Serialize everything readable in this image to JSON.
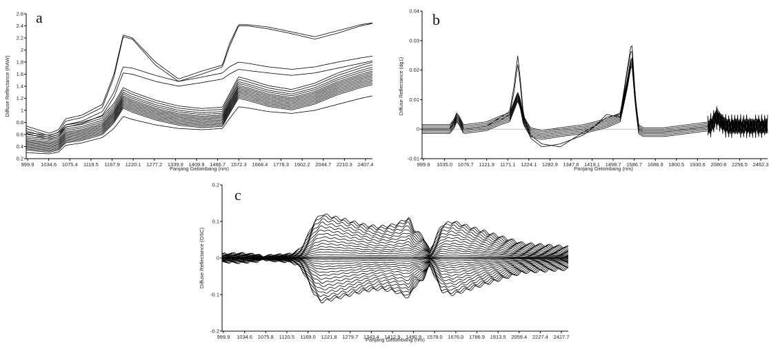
{
  "chart_data": [
    {
      "id": "a",
      "type": "line",
      "panel_label": "a",
      "xlabel": "Panjang Gelombang (nm)",
      "ylabel": "Diffuse Reflectance (RAW)",
      "x_range": [
        999.9,
        2500
      ],
      "ylim": [
        0.2,
        2.6
      ],
      "y_ticks": [
        "0.2",
        "0.4",
        "0.6",
        "0.8",
        "1",
        "1.2",
        "1.4",
        "1.6",
        "1.8",
        "2",
        "2.2",
        "2.4",
        "2.6"
      ],
      "x_ticks": [
        "999.9",
        "1034.6",
        "1075.4",
        "1119.5",
        "1167.9",
        "1220.1",
        "1277.2",
        "1339.9",
        "1409.9",
        "1486.7",
        "1572.3",
        "1668.4",
        "1778.3",
        "1902.2",
        "2044.7",
        "2210.3",
        "2407.4"
      ],
      "base_profile": {
        "x": [
          999.9,
          1100,
          1140,
          1170,
          1240,
          1330,
          1380,
          1420,
          1460,
          1560,
          1660,
          1760,
          1850,
          1880,
          1920,
          1960,
          2050,
          2150,
          2250,
          2350,
          2450,
          2500
        ],
        "y": [
          0.44,
          0.4,
          0.44,
          0.56,
          0.6,
          0.7,
          0.9,
          1.15,
          1.08,
          0.95,
          0.86,
          0.82,
          0.84,
          1.05,
          1.32,
          1.28,
          1.18,
          1.12,
          1.22,
          1.38,
          1.5,
          1.55
        ]
      },
      "series": [
        {
          "y": [
            0.74,
            0.62,
            0.68,
            0.86,
            0.92,
            1.1,
            1.6,
            2.25,
            2.2,
            1.8,
            1.52,
            1.65,
            1.75,
            2.1,
            2.42,
            2.42,
            2.38,
            2.3,
            2.22,
            2.32,
            2.42,
            2.45
          ]
        },
        {
          "y": [
            0.7,
            0.58,
            0.64,
            0.82,
            0.88,
            1.05,
            1.55,
            2.22,
            2.18,
            1.75,
            1.48,
            1.6,
            1.72,
            2.05,
            2.4,
            2.4,
            2.35,
            2.27,
            2.18,
            2.28,
            2.4,
            2.44
          ]
        },
        {
          "y": [
            0.66,
            0.55,
            0.6,
            0.76,
            0.82,
            0.98,
            1.3,
            1.72,
            1.7,
            1.58,
            1.48,
            1.55,
            1.62,
            1.72,
            1.8,
            1.78,
            1.72,
            1.68,
            1.72,
            1.8,
            1.87,
            1.9
          ]
        },
        {
          "y": [
            0.62,
            0.52,
            0.57,
            0.72,
            0.78,
            0.92,
            1.22,
            1.62,
            1.6,
            1.48,
            1.4,
            1.46,
            1.52,
            1.6,
            1.68,
            1.66,
            1.62,
            1.58,
            1.62,
            1.7,
            1.78,
            1.82
          ]
        },
        {
          "y": [
            0.3,
            0.28,
            0.31,
            0.42,
            0.46,
            0.55,
            0.7,
            0.9,
            0.85,
            0.76,
            0.7,
            0.68,
            0.7,
            0.86,
            1.06,
            1.04,
            0.98,
            0.95,
            1.0,
            1.1,
            1.2,
            1.24
          ]
        }
      ],
      "band_offsets": [
        -0.15,
        -0.12,
        -0.09,
        -0.06,
        -0.03,
        0,
        0.03,
        0.06,
        0.09,
        0.12,
        0.16,
        0.2,
        0.25,
        0.3
      ]
    },
    {
      "id": "b",
      "type": "line",
      "panel_label": "b",
      "xlabel": "Panjang Gelombang (nm)",
      "ylabel": "Diffuse Reflectance (dg1)",
      "x_range": [
        999.9,
        2500
      ],
      "ylim": [
        -0.01,
        0.04
      ],
      "y_ticks": [
        "-0.01",
        "0",
        "0.01",
        "0.02",
        "0.03",
        "0.04"
      ],
      "x_ticks": [
        "999.9",
        "1035.0",
        "1076.7",
        "1121.9",
        "1171.1",
        "1224.1",
        "1282.9",
        "1347.6",
        "1419.1",
        "1498.7",
        "1586.7",
        "1686.9",
        "1800.5",
        "1930.6",
        "2080.8",
        "2256.5",
        "2462.3"
      ],
      "base_profile": {
        "x": [
          999.9,
          1120,
          1140,
          1150,
          1160,
          1180,
          1280,
          1340,
          1380,
          1400,
          1415,
          1425,
          1440,
          1470,
          1520,
          1600,
          1700,
          1750,
          1800,
          1860,
          1890,
          1910,
          1925,
          1940,
          1960,
          2050,
          2150,
          2250,
          2280,
          2320,
          2400,
          2500
        ],
        "y": [
          0,
          0,
          0.002,
          0.004,
          0.003,
          0,
          0.001,
          0.003,
          0.004,
          0.008,
          0.011,
          0.009,
          0.003,
          -0.001,
          -0.002,
          -0.001,
          0,
          0.001,
          0.002,
          0.004,
          0.015,
          0.024,
          0.01,
          0,
          -0.001,
          -0.001,
          0,
          0.001,
          0.004,
          0.001,
          0.001,
          0.001
        ]
      },
      "series": [
        {
          "y": [
            0,
            0,
            0.003,
            0.005,
            0.004,
            0,
            0.001,
            0.004,
            0.006,
            0.015,
            0.025,
            0.018,
            0.005,
            -0.002,
            -0.005,
            -0.006,
            -0.001,
            0.001,
            0.004,
            0.005,
            0.02,
            0.03,
            0.012,
            0,
            -0.001,
            -0.001,
            0,
            0.001,
            0.007,
            0.002,
            0.002,
            0.001
          ]
        },
        {
          "y": [
            0,
            0,
            0.002,
            0.004,
            0.003,
            0,
            0.001,
            0.003,
            0.005,
            0.013,
            0.022,
            0.016,
            0.004,
            -0.003,
            -0.006,
            -0.005,
            -0.002,
            0.001,
            0.005,
            0.004,
            0.019,
            0.028,
            0.011,
            0,
            -0.001,
            -0.001,
            0,
            0.001,
            0.006,
            0.001,
            0.002,
            0.001
          ]
        }
      ],
      "band_offsets": [
        -0.0015,
        -0.001,
        -0.0005,
        0,
        0.0005,
        0.001,
        0.0015
      ]
    },
    {
      "id": "c",
      "type": "line",
      "panel_label": "c",
      "xlabel": "Panjang Gelombang (nm)",
      "ylabel": "Diffuse Reflectance (OSC)",
      "x_range": [
        999.9,
        2500
      ],
      "ylim": [
        -0.2,
        0.2
      ],
      "y_ticks": [
        "-0.2",
        "-0.1",
        "0",
        "0.1",
        "0.2"
      ],
      "x_ticks": [
        "999.9",
        "1034.6",
        "1075.8",
        "1120.5",
        "1169.0",
        "1221.8",
        "1279.7",
        "1343.4",
        "1412.9",
        "1490.9",
        "1578.0",
        "1676.0",
        "1786.9",
        "1913.5",
        "2059.4",
        "2227.4",
        "2427.7"
      ],
      "envelope": {
        "x": [
          999.9,
          1080,
          1160,
          1175,
          1200,
          1250,
          1300,
          1340,
          1370,
          1400,
          1430,
          1500,
          1560,
          1620,
          1680,
          1740,
          1780,
          1810,
          1830,
          1870,
          1900,
          1950,
          2000,
          2050,
          2100,
          2150,
          2200,
          2250,
          2300,
          2400,
          2500
        ],
        "amp": [
          0.01,
          0.012,
          0.008,
          0.001,
          0.006,
          0.008,
          0.01,
          0.025,
          0.06,
          0.1,
          0.12,
          0.11,
          0.1,
          0.09,
          0.085,
          0.09,
          0.1,
          0.11,
          0.08,
          0.06,
          0.02,
          0.09,
          0.1,
          0.09,
          0.08,
          0.07,
          0.06,
          0.05,
          0.04,
          0.035,
          0.03
        ]
      },
      "band_fractions": [
        1,
        0.95,
        0.88,
        0.8,
        0.72,
        0.64,
        0.56,
        0.48,
        0.4,
        0.33,
        0.26,
        0.2,
        0.14,
        0.08,
        0.03,
        0
      ]
    }
  ]
}
